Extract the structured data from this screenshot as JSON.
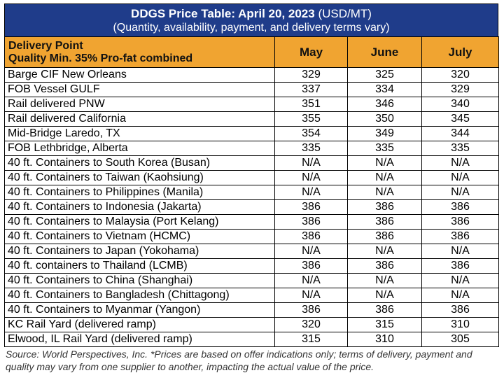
{
  "title": {
    "bold": "DDGS Price Table: April 20, 2023",
    "suffix": " (USD/MT)",
    "subtitle": "(Quantity, availability, payment, and delivery terms vary)"
  },
  "columns": {
    "delivery_point_line1": "Delivery Point",
    "delivery_point_line2": "Quality Min. 35% Pro-fat combined",
    "months": [
      "May",
      "June",
      "July"
    ]
  },
  "rows": [
    {
      "name": "Barge CIF New Orleans",
      "values": [
        "329",
        "325",
        "320"
      ]
    },
    {
      "name": "FOB Vessel GULF",
      "values": [
        "337",
        "334",
        "329"
      ]
    },
    {
      "name": "Rail delivered PNW",
      "values": [
        "351",
        "346",
        "340"
      ]
    },
    {
      "name": "Rail delivered California",
      "values": [
        "355",
        "350",
        "345"
      ]
    },
    {
      "name": "Mid-Bridge Laredo, TX",
      "values": [
        "354",
        "349",
        "344"
      ]
    },
    {
      "name": "FOB Lethbridge, Alberta",
      "values": [
        "335",
        "335",
        "335"
      ]
    },
    {
      "name": "40 ft. Containers to South Korea (Busan)",
      "values": [
        "N/A",
        "N/A",
        "N/A"
      ]
    },
    {
      "name": "40 ft. Containers to Taiwan (Kaohsiung)",
      "values": [
        "N/A",
        "N/A",
        "N/A"
      ]
    },
    {
      "name": "40 ft. Containers to Philippines (Manila)",
      "values": [
        "N/A",
        "N/A",
        "N/A"
      ]
    },
    {
      "name": "40 ft. Containers to Indonesia (Jakarta)",
      "values": [
        "386",
        "386",
        "386"
      ]
    },
    {
      "name": "40 ft. Containers to Malaysia (Port Kelang)",
      "values": [
        "386",
        "386",
        "386"
      ]
    },
    {
      "name": "40 ft. Containers to Vietnam (HCMC)",
      "values": [
        "386",
        "386",
        "386"
      ]
    },
    {
      "name": "40 ft. Containers to Japan (Yokohama)",
      "values": [
        "N/A",
        "N/A",
        "N/A"
      ]
    },
    {
      "name": "40 ft. containers to Thailand (LCMB)",
      "values": [
        "386",
        "386",
        "386"
      ]
    },
    {
      "name": "40 ft. Containers to China (Shanghai)",
      "values": [
        "N/A",
        "N/A",
        "N/A"
      ]
    },
    {
      "name": "40 ft. Containers to Bangladesh (Chittagong)",
      "values": [
        "N/A",
        "N/A",
        "N/A"
      ]
    },
    {
      "name": "40 ft. Containers to Myanmar (Yangon)",
      "values": [
        "386",
        "386",
        "386"
      ]
    },
    {
      "name": "KC Rail Yard (delivered ramp)",
      "values": [
        "320",
        "315",
        "310"
      ]
    },
    {
      "name": "Elwood, IL Rail Yard (delivered ramp)",
      "values": [
        "315",
        "310",
        "305"
      ]
    }
  ],
  "source_note": "Source: World Perspectives, Inc. *Prices are based on offer indications only; terms of delivery, payment and quality may vary from one supplier to another, impacting the actual value of the price.",
  "colors": {
    "title_band": "#1f3c8a",
    "header_band": "#f0a431"
  }
}
